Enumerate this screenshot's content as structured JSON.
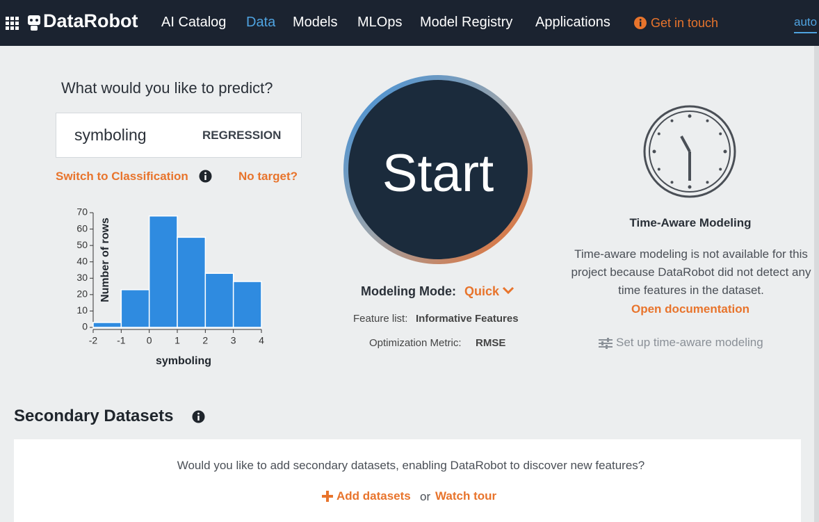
{
  "nav": {
    "logo": "DataRobot",
    "items": [
      "AI Catalog",
      "Data",
      "Models",
      "MLOps",
      "Model Registry",
      "Applications"
    ],
    "contact": "Get in touch",
    "user": "auto"
  },
  "predict": {
    "question": "What would you like to predict?",
    "target": "symboling",
    "problem_type": "REGRESSION",
    "switch": "Switch to Classification",
    "no_target": "No target?"
  },
  "chart_data": {
    "type": "histogram",
    "bins": [
      -2,
      -1,
      0,
      1,
      2,
      3,
      4
    ],
    "values": [
      3,
      23,
      68,
      55,
      33,
      28
    ],
    "color": "#2f8be0",
    "x_label": "symboling",
    "y_label": "Number of rows",
    "xlim": [
      -2,
      4
    ],
    "xticks": [
      -2,
      -1,
      0,
      1,
      2,
      3,
      4
    ],
    "ylim": [
      0,
      70
    ],
    "yticks": [
      0,
      10,
      20,
      30,
      40,
      50,
      60,
      70
    ]
  },
  "start": {
    "button": "Start",
    "mode_label": "Modeling Mode:",
    "mode": "Quick",
    "feature_label": "Feature list:",
    "feature_list": "Informative Features",
    "metric_label": "Optimization Metric:",
    "metric": "RMSE"
  },
  "time_aware": {
    "title": "Time-Aware Modeling",
    "text": "Time-aware modeling is not available for this project because DataRobot did not detect any time features in the dataset.",
    "link": "Open documentation",
    "setup": "Set up time-aware modeling"
  },
  "secondary": {
    "title": "Secondary Datasets",
    "prompt": "Would you like to add secondary datasets, enabling DataRobot to discover new features?",
    "add": "Add datasets",
    "or": "or",
    "tour": "Watch tour"
  }
}
